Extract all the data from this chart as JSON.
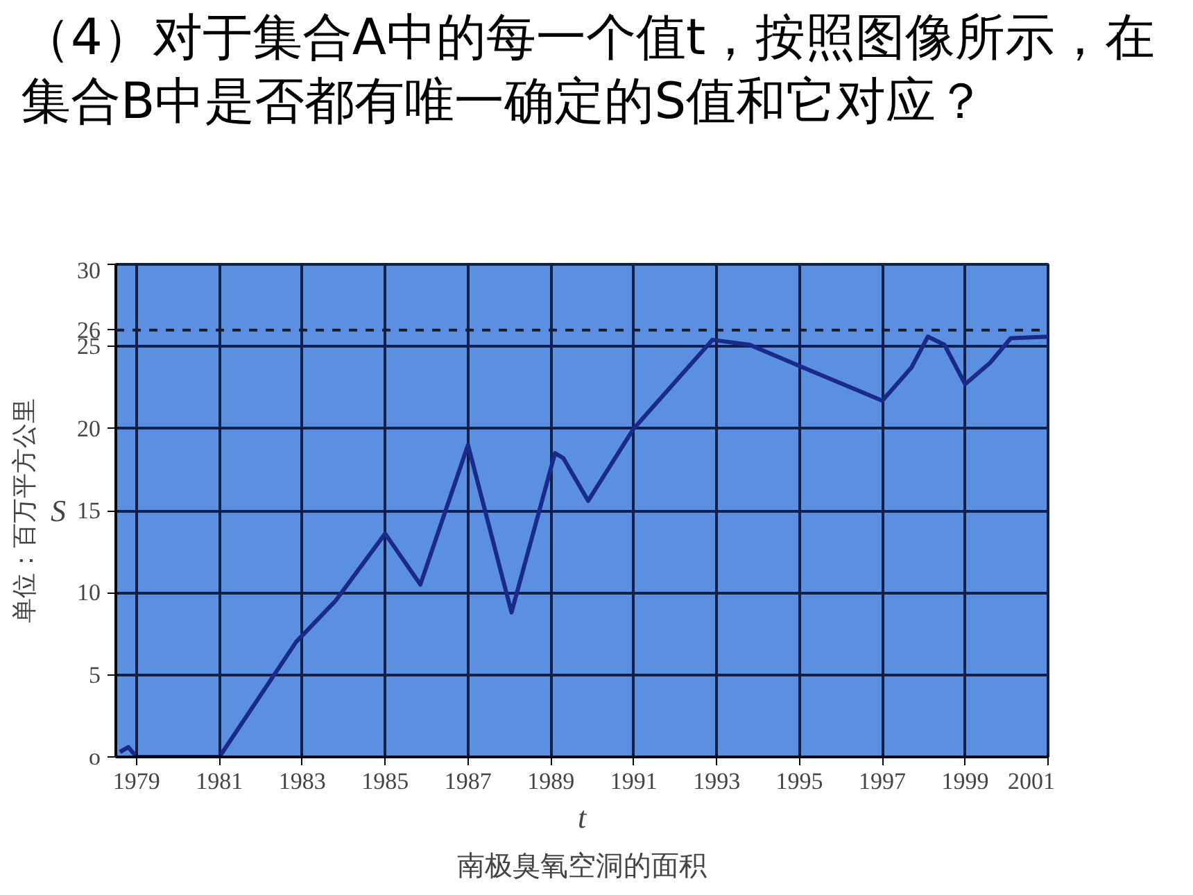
{
  "chart_data": {
    "type": "line",
    "title": "（4）对于集合A中的每一个值t，按照图像所示，在集合B中是否都有唯一确定的S值和它对应？",
    "xlabel": "t",
    "ylabel": "S",
    "annotations": [
      "单位：百万平方公里",
      "南极臭氧空洞的面积"
    ],
    "xlim": [
      1978.5,
      2001
    ],
    "ylim": [
      0,
      30
    ],
    "xticks": [
      1979,
      1981,
      1983,
      1985,
      1987,
      1989,
      1991,
      1993,
      1995,
      1997,
      1999,
      2001
    ],
    "yticks": [
      {
        "value": 0,
        "label": "o"
      },
      5,
      10,
      15,
      20,
      25,
      26,
      30
    ],
    "grid": true,
    "line_style": "solid",
    "marker": "none",
    "ref_lines": [
      {
        "axis": "y",
        "value": 26,
        "line_style": "dashed",
        "color": "#1a1a2e"
      }
    ],
    "series": [
      {
        "color": "#1a2a8a",
        "x": [
          1978.6,
          1978.8,
          1979,
          1981,
          1982.85,
          1983.8,
          1985,
          1985.85,
          1987,
          1988.05,
          1989.1,
          1989.3,
          1989.9,
          1991,
          1992.9,
          1993.8,
          1995.1,
          1997,
          1997.7,
          1998.1,
          1998.5,
          1999,
          1999.6,
          2000.1,
          2001
        ],
        "values": [
          0.3,
          0.6,
          0,
          0,
          7.0,
          9.5,
          13.6,
          10.5,
          19.0,
          8.8,
          18.5,
          18.2,
          15.6,
          20.0,
          25.4,
          25.1,
          23.7,
          21.7,
          23.7,
          25.6,
          25.1,
          22.7,
          24.0,
          25.5,
          25.6
        ]
      }
    ]
  }
}
